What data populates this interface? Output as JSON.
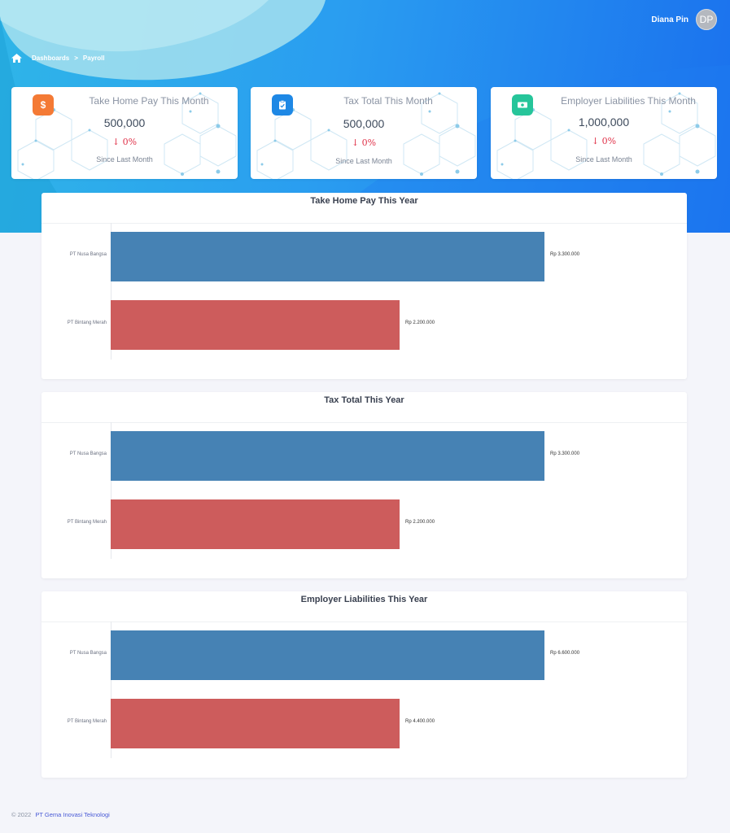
{
  "user": {
    "name": "Diana Pin",
    "initials": "DP"
  },
  "breadcrumb": {
    "items": [
      "Dashboards",
      "Payroll"
    ],
    "separator": ">"
  },
  "cards": [
    {
      "title": "Take Home Pay This Month",
      "value": "500,000",
      "change": "0%",
      "since": "Since Last Month",
      "icon": "dollar-icon",
      "color": "#f47a35"
    },
    {
      "title": "Tax Total This Month",
      "value": "500,000",
      "change": "0%",
      "since": "Since Last Month",
      "icon": "clipboard-check-icon",
      "color": "#1e88e5"
    },
    {
      "title": "Employer Liabilities This Month",
      "value": "1,000,000",
      "change": "0%",
      "since": "Since Last Month",
      "icon": "money-icon",
      "color": "#26c59a"
    }
  ],
  "chart_data": [
    {
      "type": "bar",
      "orientation": "horizontal",
      "title": "Take Home Pay This Year",
      "categories": [
        "PT Nusa Bangsa",
        "PT Bintang Merah"
      ],
      "values": [
        3300000,
        2200000
      ],
      "value_labels": [
        "Rp 3.300.000",
        "Rp 2.200.000"
      ],
      "colors": [
        "#4682b4",
        "#cd5c5c"
      ]
    },
    {
      "type": "bar",
      "orientation": "horizontal",
      "title": "Tax Total This Year",
      "categories": [
        "PT Nusa Bangsa",
        "PT Bintang Merah"
      ],
      "values": [
        3300000,
        2200000
      ],
      "value_labels": [
        "Rp 3.300.000",
        "Rp 2.200.000"
      ],
      "colors": [
        "#4682b4",
        "#cd5c5c"
      ]
    },
    {
      "type": "bar",
      "orientation": "horizontal",
      "title": "Employer Liabilities This Year",
      "categories": [
        "PT Nusa Bangsa",
        "PT Bintang Merah"
      ],
      "values": [
        6600000,
        4400000
      ],
      "value_labels": [
        "Rp 6.600.000",
        "Rp 4.400.000"
      ],
      "colors": [
        "#4682b4",
        "#cd5c5c"
      ]
    }
  ],
  "footer": {
    "copyright": "© 2022",
    "company": "PT Gema Inovasi Teknologi"
  }
}
